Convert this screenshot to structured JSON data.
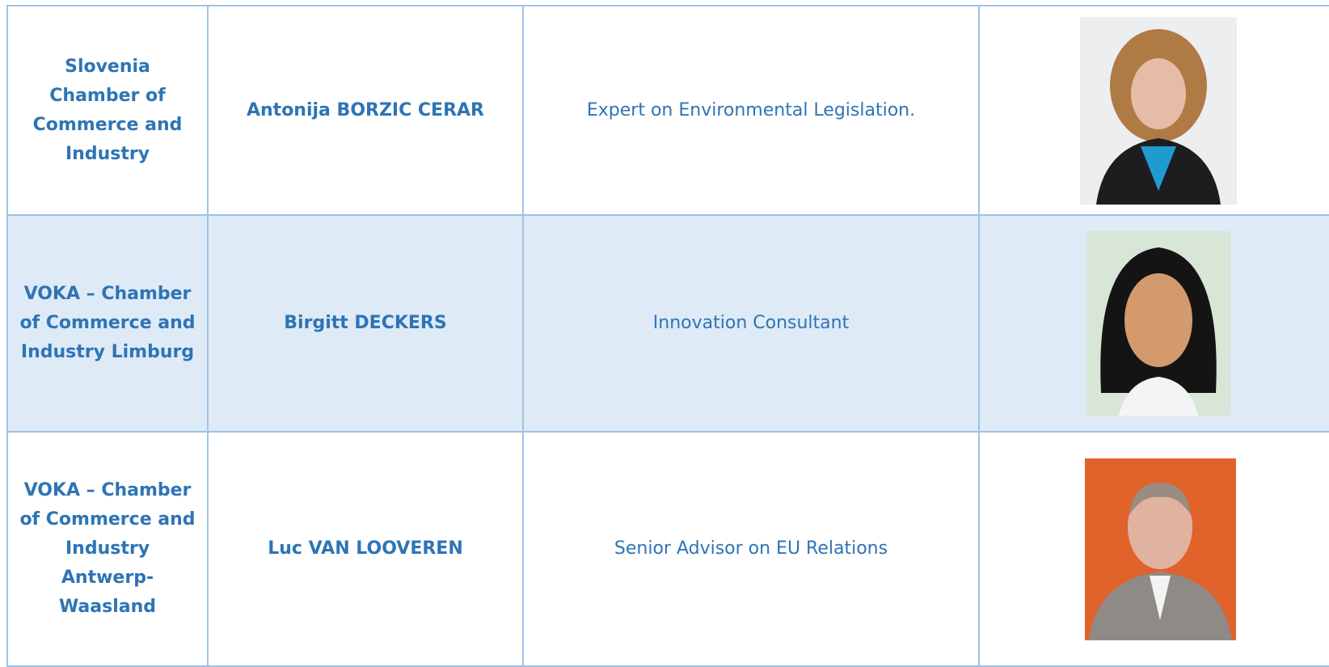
{
  "table": {
    "rows": [
      {
        "organization": "Slovenia Chamber of Commerce and Industry",
        "name": "Antonija BORZIC CERAR",
        "role": "Expert on Environmental Legislation."
      },
      {
        "organization": "VOKA – Chamber of Commerce and Industry Limburg",
        "name": "Birgitt DECKERS",
        "role": "Innovation Consultant"
      },
      {
        "organization": "VOKA – Chamber of Commerce and Industry Antwerp-Waasland",
        "name": "Luc VAN LOOVEREN",
        "role": "Senior Advisor on EU Relations"
      }
    ]
  }
}
